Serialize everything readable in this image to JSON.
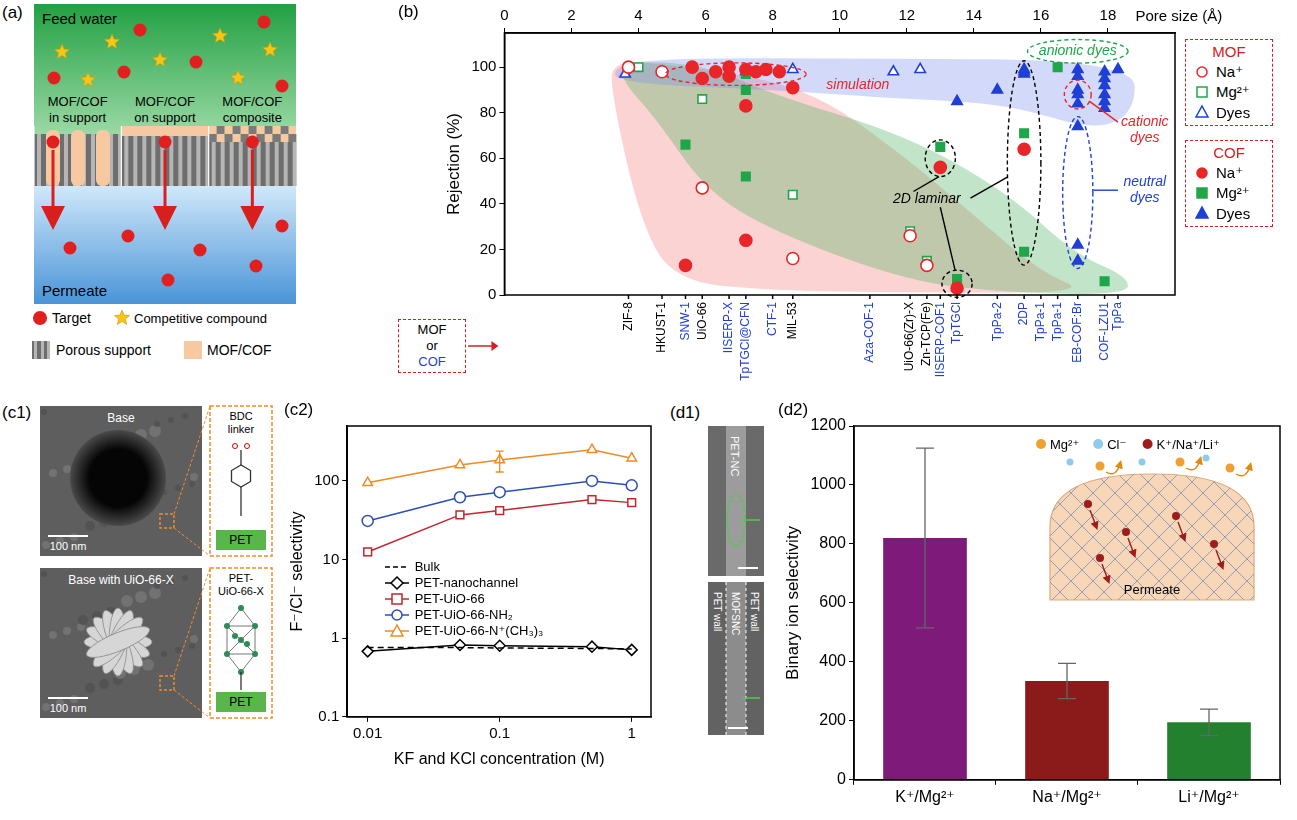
{
  "figure": {
    "panel_labels": {
      "a": "(a)",
      "b": "(b)",
      "c1": "(c1)",
      "c2": "(c2)",
      "d1": "(d1)",
      "d2": "(d2)"
    },
    "a": {
      "feed": "Feed water",
      "configurations": [
        "MOF/COF in support",
        "MOF/COF on support",
        "MOF/COF composite"
      ],
      "permeate": "Permeate",
      "key": [
        "Target",
        "Competitive compound",
        "Porous support",
        "MOF/COF"
      ]
    },
    "c1": [
      {
        "title": "Base",
        "scale_bar": "100 nm",
        "inset": "BDC linker",
        "substrate": "PET"
      },
      {
        "title": "Base with UiO-66-X",
        "scale_bar": "100 nm",
        "inset": "PET-UiO-66-X",
        "substrate": "PET"
      }
    ],
    "d1": {
      "top": [
        "PET-NC"
      ],
      "bottom": [
        "PET wall",
        "MOFSNC",
        "PET wall"
      ]
    }
  },
  "chart_data": [
    {
      "type": "scatter",
      "x_label": "Pore size (Å)",
      "y_label": "Rejection (%)",
      "xlim": [
        0,
        20
      ],
      "xticks": [
        0,
        2,
        4,
        6,
        8,
        10,
        12,
        14,
        16,
        18
      ],
      "ylim": [
        0,
        115
      ],
      "yticks": [
        0,
        20,
        40,
        60,
        80,
        100
      ],
      "grid": false,
      "legend": "right",
      "groups": [
        {
          "name": "MOF",
          "color": "#000000"
        },
        {
          "name": "COF",
          "color": "#1f3fd6"
        }
      ],
      "material_key": [
        "MOF",
        "or",
        "COF"
      ],
      "materials": [
        {
          "x": 3.7,
          "label": "ZIF-8",
          "group": "MOF"
        },
        {
          "x": 4.7,
          "label": "HKUST-1",
          "group": "MOF"
        },
        {
          "x": 5.4,
          "label": "SNW-1",
          "group": "COF"
        },
        {
          "x": 5.9,
          "label": "UiO-66",
          "group": "MOF"
        },
        {
          "x": 6.7,
          "label": "IISERP-X",
          "group": "COF"
        },
        {
          "x": 7.2,
          "label": "TpTGCl@CFN",
          "group": "COF"
        },
        {
          "x": 8.0,
          "label": "CTF-1",
          "group": "COF"
        },
        {
          "x": 8.6,
          "label": "MIL-53",
          "group": "MOF"
        },
        {
          "x": 10.9,
          "label": "Aza-COF-1",
          "group": "COF"
        },
        {
          "x": 12.1,
          "label": "UiO-66(Zr)-X",
          "group": "MOF"
        },
        {
          "x": 12.6,
          "label": "Zn-TCP(Fe)",
          "group": "MOF"
        },
        {
          "x": 13.0,
          "label": "IISERP-COF1",
          "group": "COF"
        },
        {
          "x": 13.5,
          "label": "TpTGCl",
          "group": "COF"
        },
        {
          "x": 14.7,
          "label": "TpPa-2",
          "group": "COF"
        },
        {
          "x": 15.5,
          "label": "2DP",
          "group": "COF"
        },
        {
          "x": 16.0,
          "label": "TpPa-1",
          "group": "COF"
        },
        {
          "x": 16.5,
          "label": "TpPa-1",
          "group": "COF"
        },
        {
          "x": 17.1,
          "label": "EB-COF:Br",
          "group": "COF"
        },
        {
          "x": 17.9,
          "label": "COF-LZU1",
          "group": "COF"
        },
        {
          "x": 18.3,
          "label": "TpPa",
          "group": "COF"
        }
      ],
      "series": [
        {
          "name": "Na⁺",
          "group": "MOF",
          "color": "#e8262a",
          "marker": "circle-open",
          "x": [
            3.7,
            4.7,
            5.9,
            8.6,
            12.1,
            12.6
          ],
          "values": [
            100,
            98,
            47,
            16,
            26,
            13
          ]
        },
        {
          "name": "Mg²⁺",
          "group": "MOF",
          "color": "#1fa64a",
          "marker": "square-open",
          "x": [
            4,
            5.9,
            8.6,
            12.1,
            12.6
          ],
          "values": [
            100,
            86,
            44,
            28,
            15
          ]
        },
        {
          "name": "Dyes",
          "group": "MOF",
          "color": "#1f3fd6",
          "marker": "triangle-open",
          "x": [
            3.6,
            4.7,
            8.6,
            11.6,
            12.4
          ],
          "values": [
            97,
            98,
            99,
            98,
            99
          ]
        },
        {
          "name": "Na⁺",
          "group": "COF",
          "color": "#e8262a",
          "marker": "circle",
          "x": [
            5.4,
            5.6,
            5.9,
            6.3,
            6.7,
            6.7,
            7.2,
            7.2,
            7.2,
            7.5,
            7.8,
            8.2,
            8.6,
            13,
            13.5,
            15.5
          ],
          "values": [
            13,
            100,
            95,
            98,
            100,
            96,
            99,
            83,
            24,
            98,
            99,
            98,
            91,
            56,
            3,
            64
          ]
        },
        {
          "name": "Mg²⁺",
          "group": "COF",
          "color": "#1fa64a",
          "marker": "square",
          "x": [
            5.4,
            7.2,
            7.2,
            7.2,
            13,
            13.5,
            15.5,
            15.5,
            16.5,
            17.9
          ],
          "values": [
            66,
            52,
            90,
            97,
            65,
            7,
            71,
            19,
            100,
            6
          ]
        },
        {
          "name": "Dyes",
          "group": "COF",
          "color": "#1f3fd6",
          "marker": "triangle",
          "x": [
            7.2,
            13.5,
            14.7,
            15.5,
            15.5,
            15.5,
            17.1,
            17.1,
            17.1,
            17.1,
            17.1,
            17.1,
            17.1,
            17.1,
            17.9,
            17.9,
            17.9,
            17.9,
            17.9,
            17.9,
            18.3
          ],
          "values": [
            98,
            85,
            90,
            97,
            99,
            98,
            99,
            96,
            90,
            88,
            84,
            74,
            22,
            15,
            98,
            95,
            92,
            88,
            85,
            82,
            99
          ]
        }
      ],
      "annotations": [
        {
          "text": "simulation",
          "color": "#e8262a"
        },
        {
          "text": "2D laminar",
          "color": "#000000"
        },
        {
          "text": "anionic dyes",
          "color": "#1fa64a"
        },
        {
          "text": "cationic dyes",
          "color": "#e8262a"
        },
        {
          "text": "neutral dyes",
          "color": "#1f3fd6"
        }
      ]
    },
    {
      "type": "line",
      "log": true,
      "x_label": "KF and KCl concentration (M)",
      "y_label": "F⁻/Cl⁻ selectivity",
      "x": [
        0.01,
        0.05,
        0.1,
        0.5,
        1
      ],
      "xlim": [
        0.007,
        1.4
      ],
      "xticks": [
        0.01,
        0.1,
        1
      ],
      "ylim": [
        0.1,
        500
      ],
      "yticks": [
        0.1,
        1,
        10,
        100
      ],
      "grid": false,
      "legend": "center",
      "series": [
        {
          "name": "Bulk",
          "color": "#000000",
          "marker": "none",
          "line_style": "dashed",
          "values": [
            0.76,
            0.76,
            0.75,
            0.74,
            0.73
          ]
        },
        {
          "name": "PET-nanochannel",
          "color": "#000000",
          "marker": "diamond-open",
          "line_style": "solid",
          "values": [
            0.68,
            0.82,
            0.8,
            0.78,
            0.71
          ]
        },
        {
          "name": "PET-UiO-66",
          "color": "#c0282d",
          "marker": "square-open",
          "line_style": "solid",
          "values": [
            12.5,
            37,
            42,
            58,
            53
          ]
        },
        {
          "name": "PET-UiO-66-NH₂",
          "color": "#2b4fb5",
          "marker": "circle-open",
          "line_style": "solid",
          "values": [
            31,
            62,
            72,
            100,
            88
          ]
        },
        {
          "name": "PET-UiO-66-N⁺(CH₃)₃",
          "color": "#f08a24",
          "marker": "triangle-open",
          "line_style": "solid",
          "values": [
            95,
            160,
            185,
            250,
            195
          ],
          "errors": [
            null,
            null,
            55,
            null,
            null
          ]
        }
      ]
    },
    {
      "type": "bar",
      "y_label": "Binary ion selectivity",
      "categories": [
        "K⁺/Mg²⁺",
        "Na⁺/Mg²⁺",
        "Li⁺/Mg²⁺"
      ],
      "values": [
        820,
        335,
        195
      ],
      "errors": [
        305,
        60,
        45
      ],
      "colors": [
        "#7d1a7a",
        "#8b1a1a",
        "#23802f"
      ],
      "ylim": [
        0,
        1200
      ],
      "yticks": [
        0,
        200,
        400,
        600,
        800,
        1000,
        1200
      ],
      "grid": false,
      "inset": {
        "ions": [
          "Mg²⁺",
          "Cl⁻",
          "K⁺/Na⁺/Li⁺"
        ],
        "ion_colors": [
          "#f0a030",
          "#8fcbea",
          "#a01c1c"
        ],
        "label": "Permeate"
      }
    }
  ]
}
